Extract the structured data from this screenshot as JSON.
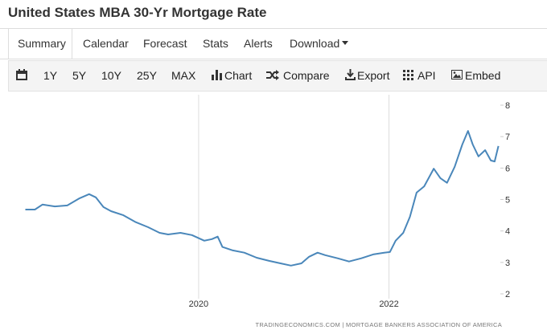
{
  "header": {
    "title": "United States MBA 30-Yr Mortgage Rate"
  },
  "tabs": [
    "Summary",
    "Calendar",
    "Forecast",
    "Stats",
    "Alerts",
    "Download"
  ],
  "toolbar": [
    "1Y",
    "5Y",
    "10Y",
    "25Y",
    "MAX",
    "Chart",
    "Compare",
    "Export",
    "API",
    "Embed"
  ],
  "chart_data": {
    "type": "line",
    "x": [
      2018.18,
      2018.28,
      2018.36,
      2018.49,
      2018.62,
      2018.75,
      2018.85,
      2018.92,
      2019.0,
      2019.08,
      2019.21,
      2019.34,
      2019.47,
      2019.59,
      2019.68,
      2019.81,
      2019.93,
      2020.06,
      2020.14,
      2020.2,
      2020.25,
      2020.36,
      2020.48,
      2020.61,
      2020.74,
      2020.86,
      2020.97,
      2021.08,
      2021.16,
      2021.25,
      2021.33,
      2021.46,
      2021.58,
      2021.71,
      2021.84,
      2021.95,
      2022.01,
      2022.07,
      2022.15,
      2022.22,
      2022.29,
      2022.37,
      2022.47,
      2022.54,
      2022.61,
      2022.69,
      2022.77,
      2022.83,
      2022.88,
      2022.94,
      2023.01,
      2023.07,
      2023.11,
      2023.15
    ],
    "values": [
      4.68,
      4.68,
      4.84,
      4.78,
      4.81,
      5.04,
      5.17,
      5.07,
      4.76,
      4.63,
      4.5,
      4.28,
      4.12,
      3.94,
      3.89,
      3.94,
      3.87,
      3.69,
      3.74,
      3.82,
      3.49,
      3.38,
      3.31,
      3.15,
      3.05,
      2.97,
      2.9,
      2.97,
      3.18,
      3.31,
      3.23,
      3.13,
      3.03,
      3.13,
      3.26,
      3.31,
      3.33,
      3.69,
      3.94,
      4.45,
      5.22,
      5.42,
      5.98,
      5.68,
      5.53,
      6.04,
      6.75,
      7.18,
      6.75,
      6.37,
      6.57,
      6.24,
      6.21,
      6.7
    ],
    "color": "#4a87ba",
    "xlim": [
      2018.15,
      2023.17
    ],
    "xticks": [
      2020,
      2022
    ],
    "ylim": [
      2,
      8
    ],
    "yticks": [
      2,
      3,
      4,
      5,
      6,
      7,
      8
    ],
    "y_axis_side": "right",
    "x_grid": true,
    "source": "TRADINGECONOMICS.COM | MORTGAGE BANKERS ASSOCIATION OF AMERICA"
  }
}
